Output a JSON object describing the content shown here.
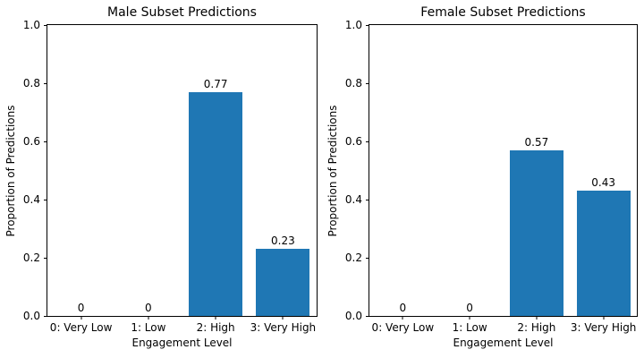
{
  "figure": {
    "background": "#ffffff",
    "bar_color": "#1f77b4",
    "spine_color": "#000000"
  },
  "chart_data": [
    {
      "type": "bar",
      "title": "Male Subset Predictions",
      "xlabel": "Engagement Level",
      "ylabel": "Proportion of Predictions",
      "categories": [
        "0: Very Low",
        "1: Low",
        "2: High",
        "3: Very High"
      ],
      "values": [
        0,
        0,
        0.77,
        0.23
      ],
      "bar_value_labels": [
        "0",
        "0",
        "0.77",
        "0.23"
      ],
      "ylim": [
        0.0,
        1.0
      ],
      "ytick_labels": [
        "0.0",
        "0.2",
        "0.4",
        "0.6",
        "0.8",
        "1.0"
      ],
      "grid": false,
      "legend": false
    },
    {
      "type": "bar",
      "title": "Female Subset Predictions",
      "xlabel": "Engagement Level",
      "ylabel": "Proportion of Predictions",
      "categories": [
        "0: Very Low",
        "1: Low",
        "2: High",
        "3: Very High"
      ],
      "values": [
        0,
        0,
        0.57,
        0.43
      ],
      "bar_value_labels": [
        "0",
        "0",
        "0.57",
        "0.43"
      ],
      "ylim": [
        0.0,
        1.0
      ],
      "ytick_labels": [
        "0.0",
        "0.2",
        "0.4",
        "0.6",
        "0.8",
        "1.0"
      ],
      "grid": false,
      "legend": false
    }
  ]
}
